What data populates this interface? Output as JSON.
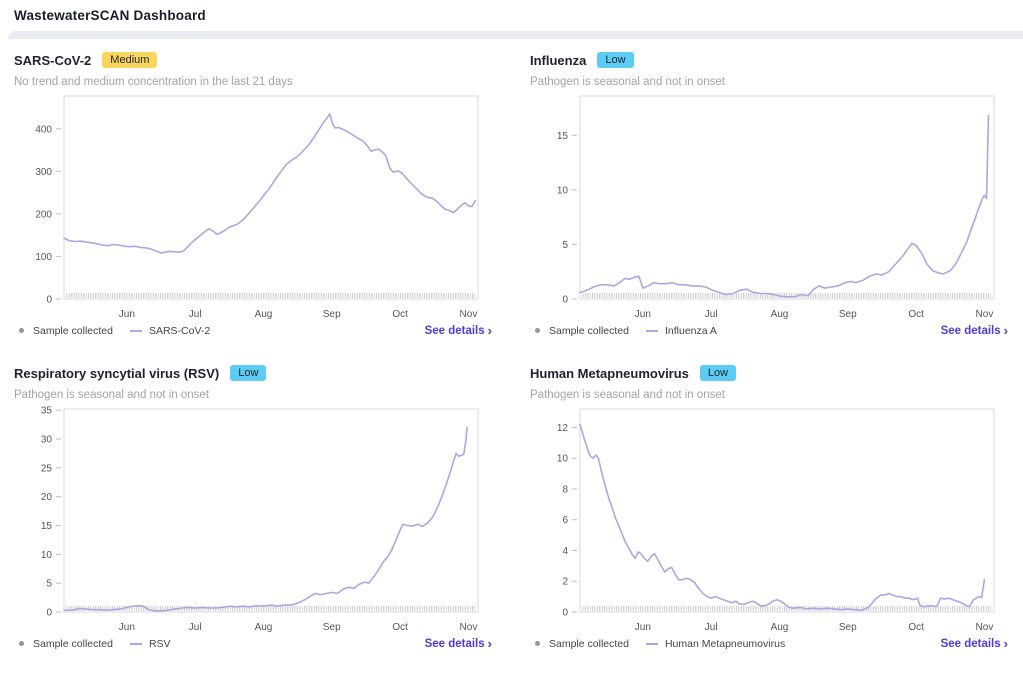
{
  "app": {
    "title": "WastewaterSCAN Dashboard"
  },
  "ui": {
    "see_details_label": "See details",
    "chevron": "›",
    "sample_collected_label": "Sample collected"
  },
  "colors": {
    "line": "#aca6e6",
    "badge_medium_bg": "#f8d55c",
    "badge_low_bg": "#5bcdf5",
    "link": "#4b3be0",
    "axis_text": "#54555c",
    "plot_border": "#d9d9de",
    "sample_tick": "#c9c9cd",
    "legend_dot": "#96969c"
  },
  "cards": [
    {
      "title": "SARS-CoV-2",
      "badge": {
        "label": "Medium",
        "type": "medium"
      },
      "subtitle": "No trend and medium concentration in the last 21 days",
      "series_label": "SARS-CoV-2"
    },
    {
      "title": "Influenza",
      "badge": {
        "label": "Low",
        "type": "low"
      },
      "subtitle": "Pathogen is seasonal and not in onset",
      "series_label": "Influenza A"
    },
    {
      "title": "Respiratory syncytial virus (RSV)",
      "badge": {
        "label": "Low",
        "type": "low"
      },
      "subtitle": "Pathogen is seasonal and not in onset",
      "series_label": "RSV"
    },
    {
      "title": "Human Metapneumovirus",
      "badge": {
        "label": "Low",
        "type": "low"
      },
      "subtitle": "Pathogen is seasonal and not in onset",
      "series_label": "Human Metapneumovirus"
    }
  ],
  "chart_data": [
    {
      "type": "line",
      "title": "SARS-CoV-2",
      "x_axis": {
        "tick_labels": [
          "Jun",
          "Jul",
          "Aug",
          "Sep",
          "Oct",
          "Nov"
        ],
        "tick_positions": [
          1,
          2,
          3,
          4,
          5,
          6
        ],
        "xlim": [
          0.08,
          6.14
        ],
        "unit": "months (1=Jun ... 6=Nov)"
      },
      "y_axis": {
        "ticks": [
          0,
          100,
          200,
          300,
          400
        ],
        "ylim": [
          0,
          477
        ]
      },
      "grid": false,
      "legend_position": "bottom",
      "baseline_markers": "dense gray sample-collected tick marks along x axis",
      "series": [
        {
          "name": "SARS-CoV-2",
          "x": [
            0.08,
            0.16,
            0.24,
            0.32,
            0.4,
            0.48,
            0.56,
            0.64,
            0.72,
            0.8,
            0.88,
            0.96,
            1.04,
            1.12,
            1.2,
            1.28,
            1.36,
            1.44,
            1.5,
            1.56,
            1.62,
            1.7,
            1.78,
            1.84,
            1.9,
            1.96,
            2.02,
            2.08,
            2.14,
            2.2,
            2.26,
            2.32,
            2.38,
            2.44,
            2.5,
            2.56,
            2.62,
            2.7,
            2.78,
            2.86,
            2.94,
            3.02,
            3.1,
            3.18,
            3.26,
            3.34,
            3.42,
            3.5,
            3.58,
            3.66,
            3.74,
            3.82,
            3.88,
            3.94,
            3.97,
            4.01,
            4.05,
            4.1,
            4.16,
            4.24,
            4.32,
            4.4,
            4.46,
            4.52,
            4.58,
            4.63,
            4.68,
            4.73,
            4.79,
            4.85,
            4.9,
            4.96,
            5.02,
            5.08,
            5.16,
            5.24,
            5.32,
            5.4,
            5.47,
            5.54,
            5.6,
            5.66,
            5.72,
            5.78,
            5.84,
            5.9,
            5.95,
            6.0,
            6.05,
            6.1
          ],
          "values": [
            143,
            137,
            135,
            136,
            134,
            132,
            130,
            127,
            125,
            128,
            127,
            124,
            123,
            124,
            121,
            120,
            117,
            112,
            108,
            110,
            112,
            111,
            110,
            114,
            124,
            134,
            142,
            150,
            158,
            165,
            160,
            152,
            156,
            162,
            169,
            172,
            176,
            186,
            200,
            215,
            230,
            247,
            263,
            283,
            300,
            317,
            327,
            335,
            348,
            362,
            380,
            400,
            415,
            428,
            435,
            412,
            402,
            403,
            399,
            392,
            384,
            376,
            371,
            360,
            347,
            350,
            352,
            347,
            337,
            307,
            298,
            301,
            297,
            286,
            272,
            259,
            246,
            239,
            237,
            229,
            219,
            211,
            208,
            203,
            211,
            221,
            226,
            219,
            217,
            231
          ]
        }
      ]
    },
    {
      "type": "line",
      "title": "Influenza A",
      "x_axis": {
        "tick_labels": [
          "Jun",
          "Jul",
          "Aug",
          "Sep",
          "Oct",
          "Nov"
        ],
        "tick_positions": [
          1,
          2,
          3,
          4,
          5,
          6
        ],
        "xlim": [
          0.08,
          6.14
        ],
        "unit": "months (1=Jun ... 6=Nov)"
      },
      "y_axis": {
        "ticks": [
          0,
          5,
          10,
          15
        ],
        "ylim": [
          0,
          18.6
        ]
      },
      "grid": false,
      "legend_position": "bottom",
      "baseline_markers": "dense gray sample-collected tick marks along x axis",
      "series": [
        {
          "name": "Influenza A",
          "x": [
            0.08,
            0.18,
            0.28,
            0.38,
            0.48,
            0.58,
            0.66,
            0.74,
            0.8,
            0.88,
            0.94,
            1.0,
            1.08,
            1.16,
            1.24,
            1.34,
            1.44,
            1.52,
            1.62,
            1.72,
            1.82,
            1.92,
            2.02,
            2.12,
            2.22,
            2.32,
            2.42,
            2.52,
            2.62,
            2.72,
            2.82,
            2.92,
            3.02,
            3.12,
            3.22,
            3.32,
            3.42,
            3.5,
            3.58,
            3.66,
            3.76,
            3.86,
            3.96,
            4.04,
            4.12,
            4.22,
            4.32,
            4.42,
            4.5,
            4.6,
            4.7,
            4.8,
            4.88,
            4.94,
            5.0,
            5.08,
            5.16,
            5.24,
            5.32,
            5.4,
            5.5,
            5.58,
            5.66,
            5.74,
            5.8,
            5.86,
            5.92,
            5.97,
            6.0,
            6.03,
            6.06
          ],
          "values": [
            0.6,
            0.8,
            1.1,
            1.3,
            1.3,
            1.2,
            1.5,
            1.9,
            1.8,
            2.0,
            2.1,
            1.0,
            1.2,
            1.5,
            1.4,
            1.4,
            1.5,
            1.3,
            1.3,
            1.2,
            1.2,
            1.1,
            0.8,
            0.6,
            0.4,
            0.5,
            0.8,
            0.9,
            0.6,
            0.5,
            0.5,
            0.4,
            0.25,
            0.2,
            0.2,
            0.4,
            0.3,
            0.9,
            1.2,
            1.0,
            1.1,
            1.2,
            1.5,
            1.6,
            1.5,
            1.7,
            2.1,
            2.3,
            2.2,
            2.5,
            3.2,
            3.9,
            4.6,
            5.1,
            4.9,
            4.2,
            3.2,
            2.6,
            2.4,
            2.3,
            2.6,
            3.2,
            4.2,
            5.2,
            6.3,
            7.3,
            8.4,
            9.2,
            9.5,
            9.2,
            16.8
          ]
        }
      ]
    },
    {
      "type": "line",
      "title": "RSV",
      "x_axis": {
        "tick_labels": [
          "Jun",
          "Jul",
          "Aug",
          "Sep",
          "Oct",
          "Nov"
        ],
        "tick_positions": [
          1,
          2,
          3,
          4,
          5,
          6
        ],
        "xlim": [
          0.08,
          6.14
        ],
        "unit": "months (1=Jun ... 6=Nov)"
      },
      "y_axis": {
        "ticks": [
          0,
          5,
          10,
          15,
          20,
          25,
          30,
          35
        ],
        "ylim": [
          0,
          35.2
        ]
      },
      "grid": false,
      "legend_position": "bottom",
      "baseline_markers": "dense gray sample-collected tick marks along x axis",
      "series": [
        {
          "name": "RSV",
          "x": [
            0.08,
            0.2,
            0.3,
            0.4,
            0.5,
            0.6,
            0.7,
            0.8,
            0.9,
            1.0,
            1.08,
            1.16,
            1.24,
            1.32,
            1.4,
            1.5,
            1.6,
            1.7,
            1.8,
            1.9,
            2.0,
            2.1,
            2.2,
            2.3,
            2.4,
            2.5,
            2.6,
            2.7,
            2.8,
            2.9,
            3.0,
            3.1,
            3.2,
            3.3,
            3.4,
            3.5,
            3.6,
            3.68,
            3.76,
            3.84,
            3.92,
            4.0,
            4.08,
            4.16,
            4.24,
            4.32,
            4.4,
            4.48,
            4.54,
            4.62,
            4.7,
            4.76,
            4.82,
            4.88,
            4.94,
            5.0,
            5.04,
            5.1,
            5.18,
            5.26,
            5.32,
            5.4,
            5.48,
            5.56,
            5.62,
            5.68,
            5.74,
            5.79,
            5.82,
            5.86,
            5.9,
            5.93,
            5.96,
            5.98
          ],
          "values": [
            0.3,
            0.3,
            0.6,
            0.5,
            0.4,
            0.4,
            0.3,
            0.4,
            0.5,
            0.8,
            1.0,
            1.1,
            1.0,
            0.4,
            0.2,
            0.2,
            0.3,
            0.5,
            0.7,
            0.8,
            0.7,
            0.8,
            0.7,
            0.7,
            0.8,
            1.0,
            0.9,
            1.0,
            0.9,
            1.1,
            1.0,
            1.2,
            1.0,
            1.2,
            1.2,
            1.5,
            2.1,
            2.7,
            3.2,
            3.0,
            3.2,
            3.4,
            3.2,
            3.9,
            4.3,
            4.1,
            4.8,
            5.2,
            5.0,
            6.2,
            7.6,
            8.8,
            9.6,
            10.8,
            12.5,
            14.2,
            15.2,
            15.0,
            14.9,
            15.2,
            14.8,
            15.4,
            16.5,
            18.5,
            20.3,
            22.3,
            24.5,
            26.5,
            27.5,
            27.0,
            27.2,
            27.3,
            29.5,
            32.0
          ]
        }
      ]
    },
    {
      "type": "line",
      "title": "Human Metapneumovirus",
      "x_axis": {
        "tick_labels": [
          "Jun",
          "Jul",
          "Aug",
          "Sep",
          "Oct",
          "Nov"
        ],
        "tick_positions": [
          1,
          2,
          3,
          4,
          5,
          6
        ],
        "xlim": [
          0.08,
          6.14
        ],
        "unit": "months (1=Jun ... 6=Nov)"
      },
      "y_axis": {
        "ticks": [
          0,
          2,
          4,
          6,
          8,
          10,
          12
        ],
        "ylim": [
          0,
          13.2
        ]
      },
      "grid": false,
      "legend_position": "bottom",
      "baseline_markers": "dense gray sample-collected tick marks along x axis",
      "series": [
        {
          "name": "Human Metapneumovirus",
          "x": [
            0.08,
            0.12,
            0.16,
            0.22,
            0.27,
            0.31,
            0.35,
            0.4,
            0.45,
            0.5,
            0.55,
            0.6,
            0.65,
            0.7,
            0.75,
            0.8,
            0.85,
            0.89,
            0.93,
            0.97,
            1.02,
            1.07,
            1.12,
            1.17,
            1.22,
            1.27,
            1.32,
            1.37,
            1.42,
            1.47,
            1.52,
            1.58,
            1.64,
            1.7,
            1.76,
            1.82,
            1.88,
            1.94,
            2.0,
            2.06,
            2.12,
            2.18,
            2.24,
            2.3,
            2.36,
            2.42,
            2.48,
            2.54,
            2.6,
            2.66,
            2.72,
            2.78,
            2.84,
            2.9,
            2.96,
            3.02,
            3.08,
            3.14,
            3.2,
            3.3,
            3.4,
            3.5,
            3.6,
            3.7,
            3.8,
            3.9,
            4.0,
            4.1,
            4.2,
            4.3,
            4.36,
            4.42,
            4.48,
            4.54,
            4.6,
            4.66,
            4.72,
            4.78,
            4.84,
            4.9,
            4.96,
            5.02,
            5.06,
            5.12,
            5.18,
            5.24,
            5.3,
            5.36,
            5.42,
            5.48,
            5.54,
            5.6,
            5.66,
            5.72,
            5.78,
            5.84,
            5.88,
            5.92,
            5.96,
            6.0
          ],
          "values": [
            12.2,
            11.6,
            11.0,
            10.2,
            10.0,
            10.2,
            10.0,
            9.0,
            8.2,
            7.4,
            6.8,
            6.1,
            5.6,
            5.0,
            4.5,
            4.1,
            3.7,
            3.5,
            3.9,
            3.8,
            3.5,
            3.3,
            3.6,
            3.8,
            3.4,
            3.0,
            2.6,
            2.8,
            2.9,
            2.5,
            2.1,
            2.1,
            2.2,
            2.1,
            1.9,
            1.5,
            1.2,
            1.0,
            0.9,
            1.0,
            0.9,
            0.8,
            0.7,
            0.6,
            0.7,
            0.5,
            0.5,
            0.6,
            0.7,
            0.6,
            0.4,
            0.4,
            0.5,
            0.7,
            0.8,
            0.7,
            0.5,
            0.3,
            0.25,
            0.3,
            0.2,
            0.25,
            0.2,
            0.25,
            0.2,
            0.15,
            0.2,
            0.15,
            0.1,
            0.3,
            0.6,
            0.9,
            1.1,
            1.1,
            1.2,
            1.1,
            1.0,
            1.0,
            0.9,
            0.9,
            0.8,
            0.9,
            0.4,
            0.35,
            0.4,
            0.4,
            0.35,
            0.9,
            0.85,
            0.9,
            0.8,
            0.7,
            0.6,
            0.45,
            0.35,
            0.8,
            0.9,
            1.0,
            0.95,
            2.1
          ]
        }
      ]
    }
  ]
}
